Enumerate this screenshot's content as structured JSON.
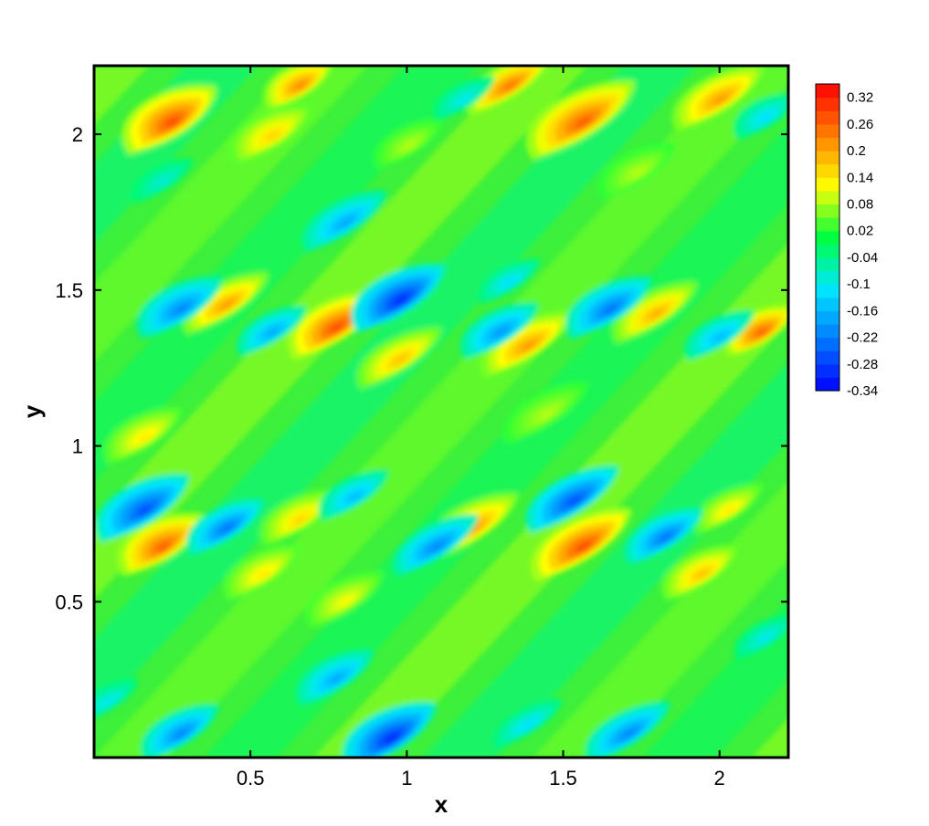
{
  "chart_data": {
    "type": "heatmap",
    "xlabel": "x",
    "ylabel": "y",
    "xlim": [
      0,
      2.22
    ],
    "ylim": [
      0,
      2.22
    ],
    "x_ticks": [
      0.5,
      1,
      1.5,
      2
    ],
    "x_tick_labels": [
      "0.5",
      "1",
      "1.5",
      "2"
    ],
    "y_ticks": [
      0.5,
      1,
      1.5,
      2
    ],
    "y_tick_labels": [
      "0.5",
      "1",
      "1.5",
      "2"
    ],
    "colorbar": {
      "min": -0.34,
      "max": 0.35,
      "levels": [
        "0.32",
        "0.26",
        "0.2",
        "0.14",
        "0.08",
        "0.02",
        "-0.04",
        "-0.1",
        "-0.16",
        "-0.22",
        "-0.28",
        "-0.34"
      ],
      "level_values": [
        0.32,
        0.26,
        0.2,
        0.14,
        0.08,
        0.02,
        -0.04,
        -0.1,
        -0.16,
        -0.22,
        -0.28,
        -0.34
      ],
      "colors": [
        "#0000ff",
        "#0078ff",
        "#00e8ff",
        "#00ff40",
        "#ffff00",
        "#ff8000",
        "#ff0000"
      ]
    },
    "grid": false
  }
}
